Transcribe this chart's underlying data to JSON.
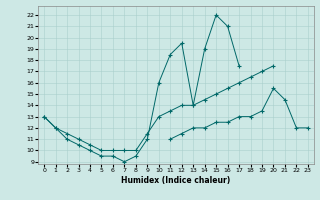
{
  "xlabel": "Humidex (Indice chaleur)",
  "bg_color": "#cde8e5",
  "line_color": "#006868",
  "grid_color": "#aacfcc",
  "xlim": [
    -0.5,
    23.5
  ],
  "ylim": [
    8.8,
    22.8
  ],
  "xticks": [
    0,
    1,
    2,
    3,
    4,
    5,
    6,
    7,
    8,
    9,
    10,
    11,
    12,
    13,
    14,
    15,
    16,
    17,
    18,
    19,
    20,
    21,
    22,
    23
  ],
  "yticks": [
    9,
    10,
    11,
    12,
    13,
    14,
    15,
    16,
    17,
    18,
    19,
    20,
    21,
    22
  ],
  "line1_y": [
    13,
    12,
    11,
    10.5,
    10,
    9.5,
    9.5,
    9,
    9.5,
    11,
    16,
    18.5,
    19.5,
    14,
    19,
    22,
    21,
    17.5,
    null,
    null,
    null,
    null,
    null,
    null
  ],
  "line2_y": [
    13,
    12,
    11.5,
    11,
    10.5,
    10,
    10,
    10,
    10,
    11.5,
    13,
    13.5,
    14,
    14,
    14.5,
    15,
    15.5,
    16,
    16.5,
    17,
    17.5,
    null,
    null,
    null
  ],
  "line3_y": [
    null,
    null,
    null,
    null,
    null,
    null,
    null,
    null,
    null,
    null,
    null,
    11,
    11.5,
    12,
    12,
    12.5,
    12.5,
    13,
    13,
    13.5,
    15.5,
    14.5,
    12,
    12
  ]
}
